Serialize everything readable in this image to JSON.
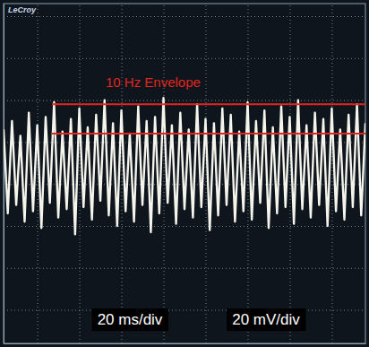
{
  "chart_data": {
    "type": "line",
    "xlabel": "20 ms/div",
    "ylabel": "20 mV/div",
    "annotations": [
      {
        "text": "LeCroy",
        "color": "#c8d4e8"
      },
      {
        "text": "10 Hz Envelope",
        "color": "#e0261e",
        "values": [
          18,
          4
        ],
        "x": [
          7,
          156
        ]
      }
    ],
    "x": [
      -16,
      -14,
      -12,
      -10,
      -8,
      -6,
      -4,
      -2,
      0,
      2,
      4,
      6,
      8,
      10,
      12,
      14,
      16,
      18,
      20,
      22,
      24,
      26,
      28,
      30,
      32,
      34,
      36,
      38,
      40,
      42,
      44,
      46,
      48,
      50,
      52,
      54,
      56,
      58,
      60,
      62,
      64,
      66,
      68,
      70,
      72,
      74,
      76,
      78,
      80,
      82,
      84,
      86,
      88,
      90,
      92,
      94,
      96,
      98,
      100,
      102,
      104,
      106,
      108,
      110,
      112,
      114,
      116,
      118,
      120,
      122,
      124,
      126,
      128,
      130,
      132,
      134,
      136,
      138,
      140,
      142,
      144,
      146,
      148,
      150,
      152,
      154,
      156
    ],
    "values": [
      6,
      -34,
      10,
      -30,
      3,
      -38,
      14,
      -33,
      8,
      -41,
      12,
      -29,
      19,
      -36,
      5,
      -32,
      11,
      -44,
      16,
      -31,
      7,
      -37,
      13,
      -28,
      20,
      -35,
      9,
      -40,
      15,
      -33,
      4,
      -38,
      17,
      -30,
      10,
      -43,
      12,
      -34,
      21,
      -29,
      8,
      -39,
      14,
      -32,
      6,
      -36,
      18,
      -31,
      11,
      -42,
      9,
      -35,
      16,
      -30,
      13,
      -38,
      5,
      -33,
      19,
      -37,
      10,
      -29,
      15,
      -41,
      7,
      -34,
      17,
      -31,
      12,
      -39,
      20,
      -32,
      8,
      -36,
      14,
      -30,
      11,
      -40,
      16,
      -33,
      6,
      -37,
      13,
      -31,
      18,
      -35,
      9
    ],
    "color": "#f4f4ec",
    "xlim": [
      -16,
      156
    ],
    "xticks": [
      0,
      20,
      40,
      60,
      80,
      100,
      120,
      140
    ],
    "ylim": [
      -96,
      66
    ],
    "yticks": [
      60,
      40,
      20,
      0,
      -20,
      -40,
      -60,
      -80
    ],
    "grid": true,
    "tick_labels": false
  }
}
